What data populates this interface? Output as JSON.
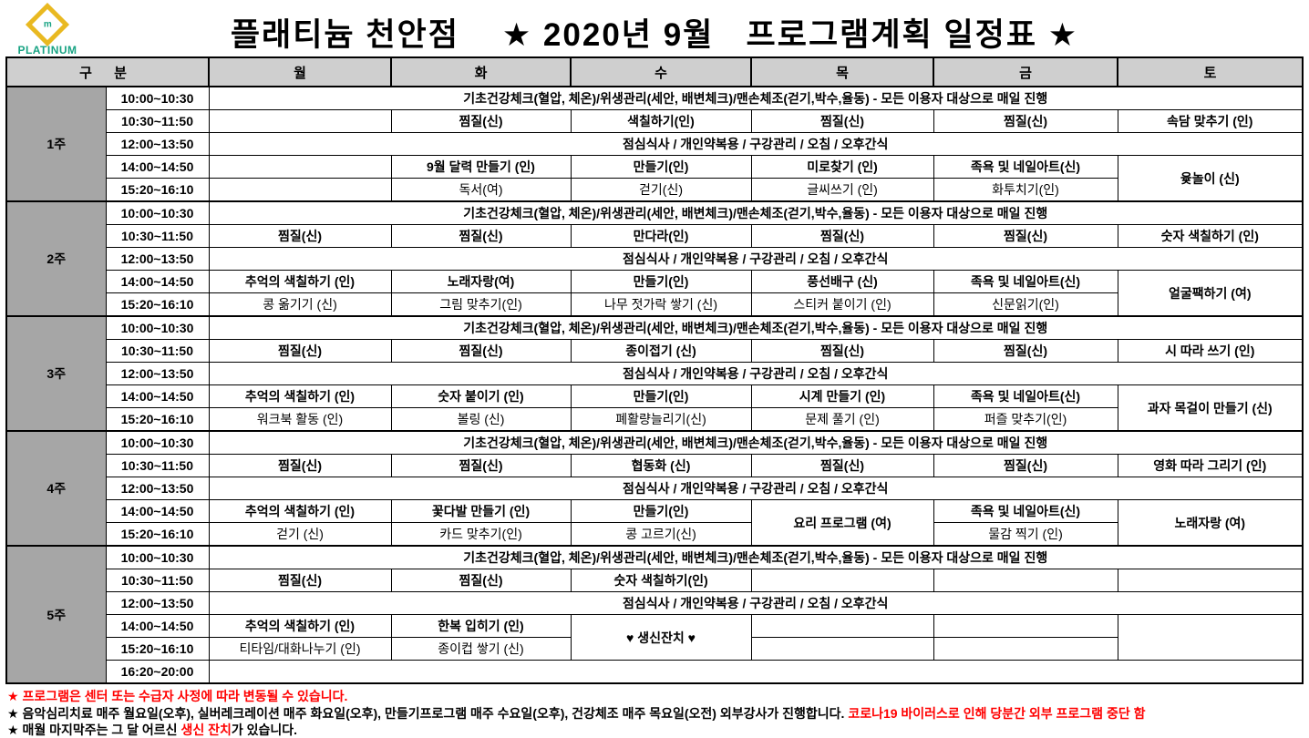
{
  "logo": {
    "brand": "PLATINUM",
    "mark": "m"
  },
  "title": "플래티늄 천안점    ★ 2020년 9월   프로그램계획 일정표 ★",
  "colors": {
    "orange": "#C55A11",
    "darkred": "#9E3A3A",
    "olive": "#8C8445",
    "blue": "#2155A3",
    "gray": "#7F7F7F",
    "red": "#FF0000",
    "header_bg": "#CFCFCF",
    "week_bg": "#A6A6A6",
    "gold": "#E9B921",
    "teal": "#18A383"
  },
  "table": {
    "corner": "구 분",
    "days": [
      "월",
      "화",
      "수",
      "목",
      "금",
      "토"
    ],
    "daily_text": "기초건강체크(혈압, 체온)/위생관리(세안, 배변체크)/맨손체조(걷기,박수,율동) - 모든 이용자 대상으로 매일 진행",
    "lunch_text": "점심식사 / 개인약복용 / 구강관리 / 오침 / 오후간식",
    "weeks": [
      {
        "label": "1주",
        "rows": [
          {
            "time": "10:00~10:30",
            "cells": [
              {
                "type": "daily",
                "colspan": 6
              }
            ]
          },
          {
            "time": "10:30~11:50",
            "cells": [
              {
                "text": ""
              },
              {
                "text": "찜질(신)",
                "color": "orange"
              },
              {
                "text": "색칠하기(인)"
              },
              {
                "text": "찜질(신)",
                "color": "orange"
              },
              {
                "text": "찜질(신)",
                "color": "orange"
              },
              {
                "text": "속담 맞추기 (인)"
              }
            ]
          },
          {
            "time": "12:00~13:50",
            "cells": [
              {
                "type": "lunch",
                "colspan": 6
              }
            ]
          },
          {
            "time": "14:00~14:50",
            "cells": [
              {
                "text": ""
              },
              {
                "text": "9월 달력 만들기 (인)"
              },
              {
                "text": "만들기(인)",
                "color": "darkred"
              },
              {
                "text": "미로찾기 (인)"
              },
              {
                "text": "족욕 및 네일아트(신)",
                "color": "olive"
              },
              {
                "text": "윷놀이 (신)",
                "rowspan": 2
              }
            ]
          },
          {
            "time": "15:20~16:10",
            "cells": [
              {
                "text": ""
              },
              {
                "text": "독서(여)",
                "color": "gray"
              },
              {
                "text": "걷기(신)",
                "color": "gray"
              },
              {
                "text": "글씨쓰기 (인)",
                "color": "gray"
              },
              {
                "text": "화투치기(인)",
                "color": "gray"
              }
            ]
          }
        ]
      },
      {
        "label": "2주",
        "rows": [
          {
            "time": "10:00~10:30",
            "cells": [
              {
                "type": "daily",
                "colspan": 6
              }
            ]
          },
          {
            "time": "10:30~11:50",
            "cells": [
              {
                "text": "찜질(신)",
                "color": "orange"
              },
              {
                "text": "찜질(신)",
                "color": "orange"
              },
              {
                "text": "만다라(인)"
              },
              {
                "text": "찜질(신)",
                "color": "orange"
              },
              {
                "text": "찜질(신)",
                "color": "orange"
              },
              {
                "text": "숫자 색칠하기 (인)"
              }
            ]
          },
          {
            "time": "12:00~13:50",
            "cells": [
              {
                "type": "lunch",
                "colspan": 6
              }
            ]
          },
          {
            "time": "14:00~14:50",
            "cells": [
              {
                "text": "추억의 색칠하기 (인)",
                "color": "blue"
              },
              {
                "text": "노래자랑(여)"
              },
              {
                "text": "만들기(인)",
                "color": "darkred"
              },
              {
                "text": "풍선배구 (신)"
              },
              {
                "text": "족욕 및 네일아트(신)",
                "color": "olive"
              },
              {
                "text": "얼굴팩하기 (여)",
                "rowspan": 2
              }
            ]
          },
          {
            "time": "15:20~16:10",
            "cells": [
              {
                "text": "콩 옮기기 (신)",
                "color": "gray"
              },
              {
                "text": "그림 맞추기(인)",
                "color": "gray"
              },
              {
                "text": "나무 젓가락 쌓기 (신)",
                "color": "gray"
              },
              {
                "text": "스티커 붙이기 (인)",
                "color": "gray"
              },
              {
                "text": "신문읽기(인)",
                "color": "gray"
              }
            ]
          }
        ]
      },
      {
        "label": "3주",
        "rows": [
          {
            "time": "10:00~10:30",
            "cells": [
              {
                "type": "daily",
                "colspan": 6
              }
            ]
          },
          {
            "time": "10:30~11:50",
            "cells": [
              {
                "text": "찜질(신)",
                "color": "orange"
              },
              {
                "text": "찜질(신)",
                "color": "orange"
              },
              {
                "text": "종이접기 (신)"
              },
              {
                "text": "찜질(신)",
                "color": "orange"
              },
              {
                "text": "찜질(신)",
                "color": "orange"
              },
              {
                "text": "시 따라 쓰기 (인)"
              }
            ]
          },
          {
            "time": "12:00~13:50",
            "cells": [
              {
                "type": "lunch",
                "colspan": 6
              }
            ]
          },
          {
            "time": "14:00~14:50",
            "cells": [
              {
                "text": "추억의 색칠하기 (인)",
                "color": "blue"
              },
              {
                "text": "숫자 붙이기 (인)"
              },
              {
                "text": "만들기(인)",
                "color": "darkred"
              },
              {
                "text": "시계 만들기 (인)"
              },
              {
                "text": "족욕 및 네일아트(신)",
                "color": "olive"
              },
              {
                "text": "과자 목걸이 만들기 (신)",
                "rowspan": 2
              }
            ]
          },
          {
            "time": "15:20~16:10",
            "cells": [
              {
                "text": "워크북 활동 (인)",
                "color": "gray"
              },
              {
                "text": "볼링 (신)",
                "color": "gray"
              },
              {
                "text": "폐활량늘리기(신)",
                "color": "gray"
              },
              {
                "text": "문제 풀기 (인)",
                "color": "gray"
              },
              {
                "text": "퍼즐 맞추기(인)",
                "color": "gray"
              }
            ]
          }
        ]
      },
      {
        "label": "4주",
        "rows": [
          {
            "time": "10:00~10:30",
            "cells": [
              {
                "type": "daily",
                "colspan": 6
              }
            ]
          },
          {
            "time": "10:30~11:50",
            "cells": [
              {
                "text": "찜질(신)",
                "color": "orange"
              },
              {
                "text": "찜질(신)",
                "color": "orange"
              },
              {
                "text": "협동화 (신)"
              },
              {
                "text": "찜질(신)",
                "color": "orange"
              },
              {
                "text": "찜질(신)",
                "color": "orange"
              },
              {
                "text": "영화 따라 그리기 (인)"
              }
            ]
          },
          {
            "time": "12:00~13:50",
            "cells": [
              {
                "type": "lunch",
                "colspan": 6
              }
            ]
          },
          {
            "time": "14:00~14:50",
            "cells": [
              {
                "text": "추억의 색칠하기 (인)",
                "color": "blue"
              },
              {
                "text": "꽃다발 만들기 (인)"
              },
              {
                "text": "만들기(인)",
                "color": "darkred"
              },
              {
                "text": "요리 프로그램 (여)",
                "color": "red",
                "rowspan": 2
              },
              {
                "text": "족욕 및 네일아트(신)",
                "color": "olive"
              },
              {
                "text": "노래자랑 (여)",
                "rowspan": 2
              }
            ]
          },
          {
            "time": "15:20~16:10",
            "cells": [
              {
                "text": "걷기 (신)",
                "color": "gray"
              },
              {
                "text": "카드 맞추기(인)",
                "color": "gray"
              },
              {
                "text": "콩 고르기(신)",
                "color": "gray"
              },
              {
                "text": "물감 찍기 (인)",
                "color": "gray"
              }
            ]
          }
        ]
      },
      {
        "label": "5주",
        "rows": [
          {
            "time": "10:00~10:30",
            "cells": [
              {
                "type": "daily",
                "colspan": 6
              }
            ]
          },
          {
            "time": "10:30~11:50",
            "cells": [
              {
                "text": "찜질(신)",
                "color": "orange"
              },
              {
                "text": "찜질(신)",
                "color": "orange"
              },
              {
                "text": "숫자 색칠하기(인)"
              },
              {
                "text": ""
              },
              {
                "text": ""
              },
              {
                "text": ""
              }
            ]
          },
          {
            "time": "12:00~13:50",
            "cells": [
              {
                "type": "lunch",
                "colspan": 6
              }
            ]
          },
          {
            "time": "14:00~14:50",
            "cells": [
              {
                "text": "추억의 색칠하기 (인)",
                "color": "blue"
              },
              {
                "text": "한복 입히기 (인)"
              },
              {
                "text": "♥ 생신잔치 ♥",
                "color": "red",
                "rowspan": 2
              },
              {
                "text": ""
              },
              {
                "text": ""
              },
              {
                "text": "",
                "rowspan": 2
              }
            ]
          },
          {
            "time": "15:20~16:10",
            "cells": [
              {
                "text": "티타임/대화나누기 (인)",
                "color": "gray"
              },
              {
                "text": "종이컵 쌓기 (신)",
                "color": "gray"
              },
              {
                "text": ""
              },
              {
                "text": ""
              }
            ]
          },
          {
            "time": "16:20~20:00",
            "cells": [
              {
                "text": "",
                "colspan": 6
              }
            ]
          }
        ]
      }
    ]
  },
  "footnotes": [
    [
      {
        "text": "★ 프로그램은 센터 또는 수급자 사정에 따라 변동될 수 있습니다.",
        "color": "red"
      }
    ],
    [
      {
        "text": "★ 음악심리치료 매주 월요일(오후), 실버레크레이션 매주 화요일(오후), 만들기프로그램 매주 수요일(오후), 건강체조 매주 목요일(오전) 외부강사가 진행합니다. ",
        "color": "black"
      },
      {
        "text": "코로나19 바이러스로 인해 당분간 외부 프로그램 중단 함",
        "color": "red"
      }
    ],
    [
      {
        "text": "★ 매월 마지막주는 그 달 어르신 ",
        "color": "black"
      },
      {
        "text": "생신 잔치",
        "color": "red"
      },
      {
        "text": "가 있습니다.",
        "color": "black"
      }
    ]
  ]
}
